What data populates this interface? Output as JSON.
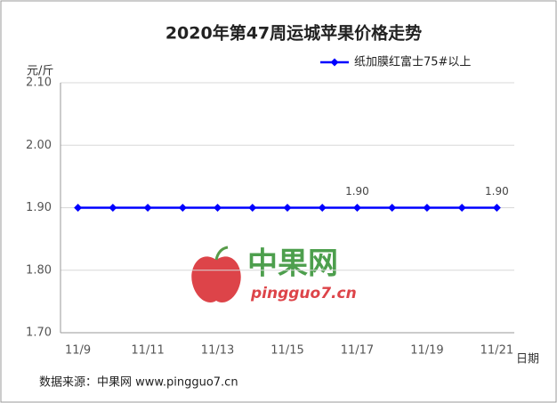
{
  "chart_data": {
    "type": "line",
    "title": "2020年第47周运城苹果价格走势",
    "y_label": "元/斤",
    "x_label": "日期",
    "categories": [
      "11/9",
      null,
      "11/11",
      null,
      "11/13",
      null,
      "11/15",
      null,
      "11/17",
      null,
      "11/19",
      null,
      "11/21"
    ],
    "series": [
      {
        "name": "纸加膜红富士75#以上",
        "color": "#0000ff",
        "values": [
          1.9,
          1.9,
          1.9,
          1.9,
          1.9,
          1.9,
          1.9,
          1.9,
          1.9,
          1.9,
          1.9,
          1.9,
          1.9
        ],
        "value_labels": [
          null,
          null,
          null,
          null,
          null,
          null,
          null,
          null,
          "1.90",
          null,
          null,
          null,
          "1.90"
        ]
      }
    ],
    "ylim": [
      1.7,
      2.1
    ],
    "yticks": [
      {
        "value": 1.7,
        "label": "1.70"
      },
      {
        "value": 1.8,
        "label": "1.80"
      },
      {
        "value": 1.9,
        "label": "1.90"
      },
      {
        "value": 2.0,
        "label": "2.00"
      },
      {
        "value": 2.1,
        "label": "2.10"
      }
    ],
    "grid": true,
    "legend": "top-right",
    "source": "数据来源：中果网 www.pingguo7.cn",
    "watermark": {
      "name": "中果网",
      "url": "pingguo7.cn"
    }
  }
}
